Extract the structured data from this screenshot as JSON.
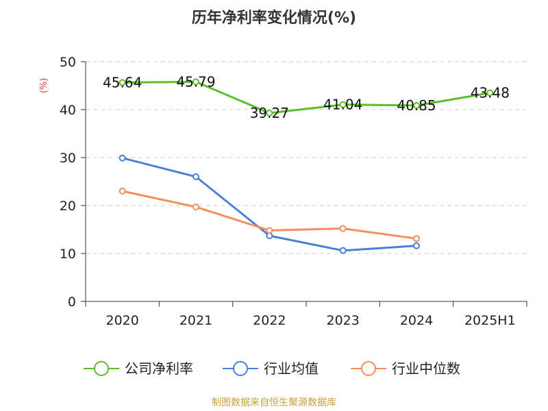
{
  "chart_data": {
    "type": "line",
    "title": "历年净利率变化情况(%)",
    "ylabel": "(%)",
    "ylim": [
      0,
      50
    ],
    "yticks": [
      0,
      10,
      20,
      30,
      40,
      50
    ],
    "grid": true,
    "legend_position": "bottom",
    "categories": [
      "2020",
      "2021",
      "2022",
      "2023",
      "2024",
      "2025H1"
    ],
    "series": [
      {
        "name": "公司净利率",
        "color": "#5cbf2a",
        "show_labels": true,
        "values": [
          45.64,
          45.79,
          39.27,
          41.04,
          40.85,
          43.48
        ],
        "labels": [
          "45.64",
          "45.79",
          "39.27",
          "41.04",
          "40.85",
          "43.48"
        ]
      },
      {
        "name": "行业均值",
        "color": "#4a7fd8",
        "show_labels": false,
        "values": [
          29.9,
          26.0,
          13.7,
          10.6,
          11.6,
          null
        ]
      },
      {
        "name": "行业中位数",
        "color": "#f58e5a",
        "show_labels": false,
        "values": [
          23.0,
          19.7,
          14.8,
          15.2,
          13.1,
          null
        ]
      }
    ]
  },
  "footer": {
    "source": "制图数据来自恒生聚源数据库"
  }
}
